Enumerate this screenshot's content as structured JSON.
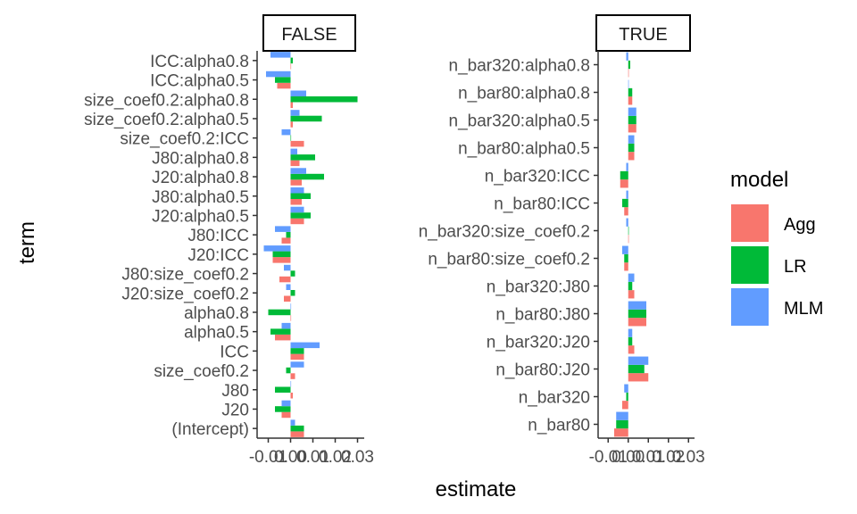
{
  "chart_data": {
    "type": "bar",
    "orientation": "horizontal",
    "xlabel": "estimate",
    "ylabel": "term",
    "legend": {
      "title": "model",
      "position": "right",
      "items": [
        {
          "name": "Agg",
          "color": "#F8766D"
        },
        {
          "name": "LR",
          "color": "#00BA38"
        },
        {
          "name": "MLM",
          "color": "#619CFF"
        }
      ]
    },
    "xticks": [
      "-0.01",
      "0.00",
      "0.01",
      "0.02",
      "0.03"
    ],
    "xtick_values": [
      -0.01,
      0.0,
      0.01,
      0.02,
      0.03
    ],
    "xlim": [
      -0.015,
      0.033
    ],
    "grid": false,
    "panels": [
      {
        "strip": "FALSE",
        "terms": [
          "ICC:alpha0.8",
          "ICC:alpha0.5",
          "size_coef0.2:alpha0.8",
          "size_coef0.2:alpha0.5",
          "size_coef0.2:ICC",
          "J80:alpha0.8",
          "J20:alpha0.8",
          "J80:alpha0.5",
          "J20:alpha0.5",
          "J80:ICC",
          "J20:ICC",
          "J80:size_coef0.2",
          "J20:size_coef0.2",
          "alpha0.8",
          "alpha0.5",
          "ICC",
          "size_coef0.2",
          "J80",
          "J20",
          "(Intercept)"
        ],
        "series": [
          {
            "name": "Agg",
            "values": [
              0.0,
              -0.006,
              0.001,
              0.001,
              0.006,
              0.004,
              0.005,
              0.005,
              0.006,
              -0.004,
              -0.008,
              -0.005,
              -0.003,
              0.0,
              -0.007,
              0.006,
              0.002,
              0.001,
              -0.004,
              0.006
            ]
          },
          {
            "name": "LR",
            "values": [
              0.001,
              -0.007,
              0.03,
              0.014,
              0.0,
              0.011,
              0.015,
              0.009,
              0.009,
              -0.002,
              -0.008,
              0.002,
              0.002,
              -0.01,
              -0.009,
              0.006,
              -0.002,
              -0.007,
              -0.007,
              0.006
            ]
          },
          {
            "name": "MLM",
            "values": [
              -0.009,
              -0.011,
              0.007,
              0.004,
              -0.004,
              0.003,
              0.007,
              0.006,
              0.006,
              -0.007,
              -0.012,
              -0.003,
              -0.002,
              0.0,
              -0.004,
              0.013,
              0.006,
              0.0,
              -0.004,
              0.002
            ]
          }
        ]
      },
      {
        "strip": "TRUE",
        "terms": [
          "n_bar320:alpha0.8",
          "n_bar80:alpha0.8",
          "n_bar320:alpha0.5",
          "n_bar80:alpha0.5",
          "n_bar320:ICC",
          "n_bar80:ICC",
          "n_bar320:size_coef0.2",
          "n_bar80:size_coef0.2",
          "n_bar320:J80",
          "n_bar80:J80",
          "n_bar320:J20",
          "n_bar80:J20",
          "n_bar320",
          "n_bar80"
        ],
        "series": [
          {
            "name": "Agg",
            "values": [
              0.0,
              0.002,
              0.004,
              0.003,
              -0.004,
              -0.002,
              0.0,
              -0.002,
              0.003,
              0.009,
              0.003,
              0.01,
              -0.003,
              -0.007
            ]
          },
          {
            "name": "LR",
            "values": [
              0.001,
              0.002,
              0.004,
              0.003,
              -0.004,
              -0.003,
              0.0,
              -0.002,
              0.002,
              0.009,
              0.002,
              0.008,
              -0.001,
              -0.006
            ]
          },
          {
            "name": "MLM",
            "values": [
              -0.001,
              0.0,
              0.004,
              0.003,
              -0.001,
              -0.001,
              -0.001,
              -0.003,
              0.003,
              0.009,
              0.002,
              0.01,
              -0.002,
              -0.006
            ]
          }
        ]
      }
    ]
  }
}
